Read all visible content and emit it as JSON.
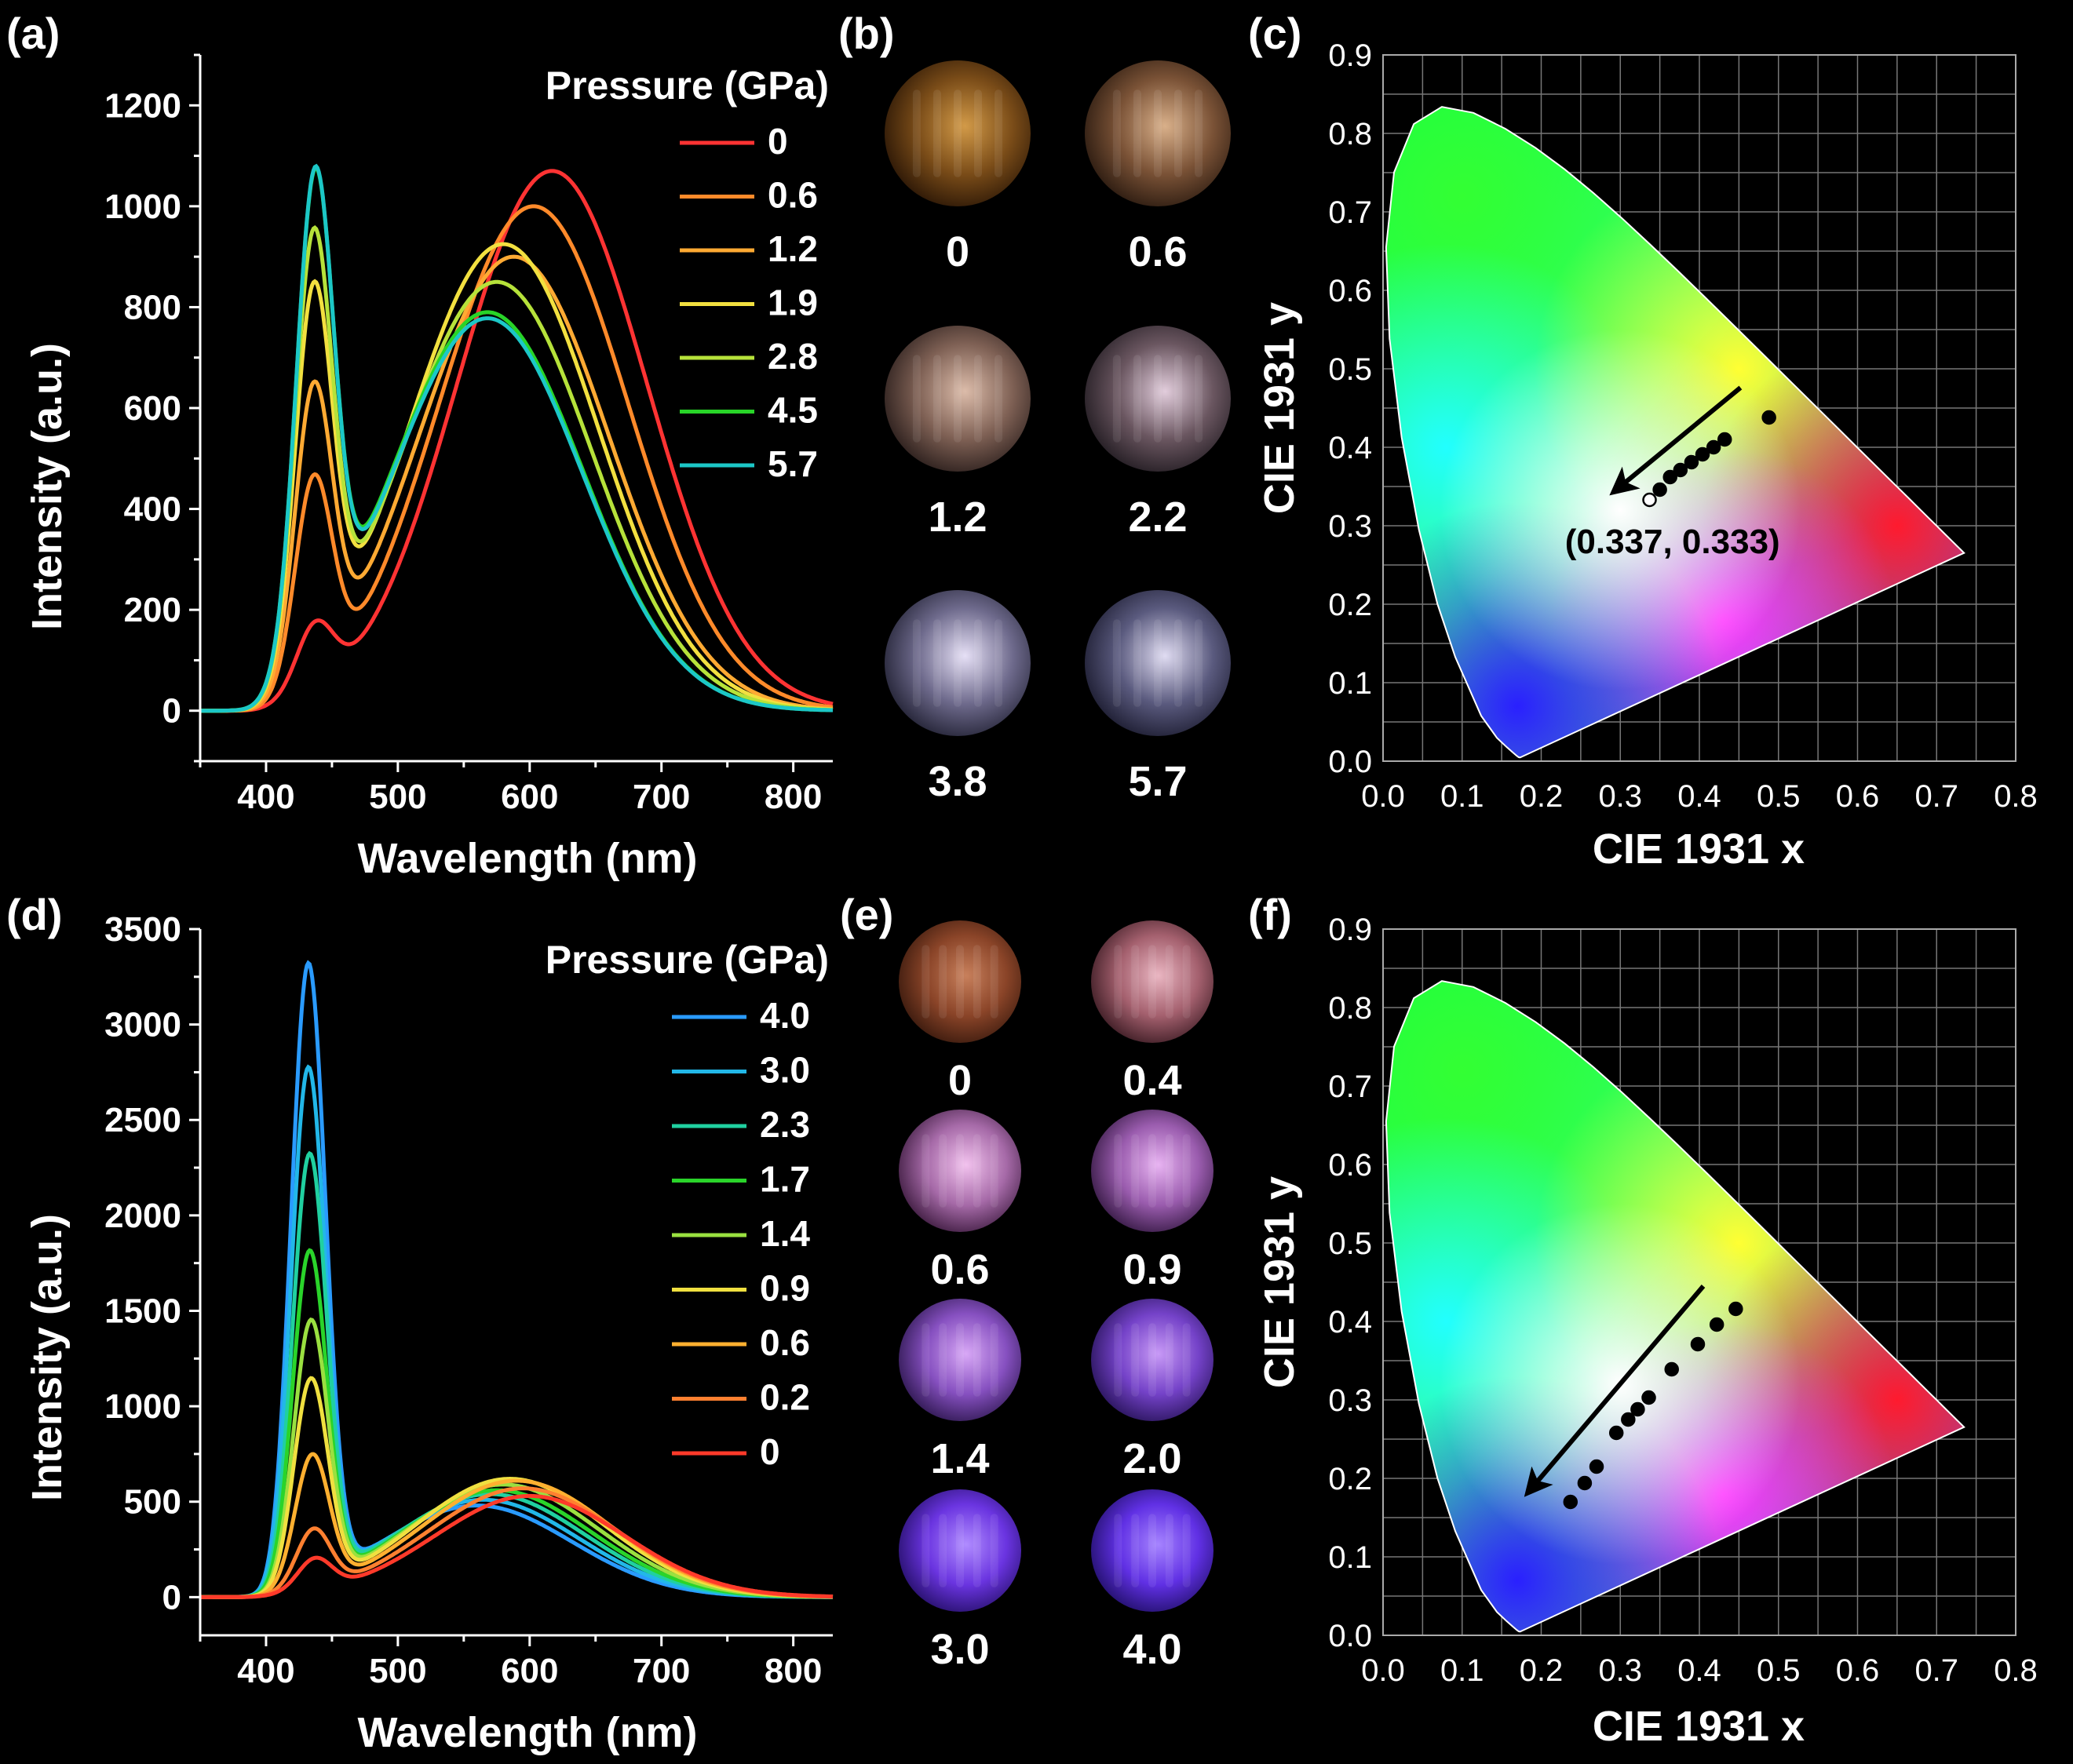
{
  "panels": {
    "a": "(a)",
    "b": "(b)",
    "c": "(c)",
    "d": "(d)",
    "e": "(e)",
    "f": "(f)"
  },
  "chart_data": [
    {
      "id": "a",
      "type": "line",
      "xlabel": "Wavelength (nm)",
      "ylabel": "Intensity (a.u.)",
      "xlim": [
        350,
        830
      ],
      "ylim": [
        -100,
        1300
      ],
      "xticks": [
        400,
        500,
        600,
        700,
        800
      ],
      "yticks": [
        0,
        200,
        400,
        600,
        800,
        1000,
        1200
      ],
      "legend_title": "Pressure (GPa)",
      "legend_position": "top-right",
      "series": [
        {
          "name": "0",
          "color": "#ff3333",
          "p1": {
            "c": 437,
            "a": 130,
            "w": 14
          },
          "p2": {
            "c": 617,
            "a": 1070,
            "w": 72
          }
        },
        {
          "name": "0.6",
          "color": "#ff8a2a",
          "p1": {
            "c": 436,
            "a": 400,
            "w": 14
          },
          "p2": {
            "c": 603,
            "a": 1000,
            "w": 72
          }
        },
        {
          "name": "1.2",
          "color": "#ffaa33",
          "p1": {
            "c": 436,
            "a": 555,
            "w": 14
          },
          "p2": {
            "c": 588,
            "a": 900,
            "w": 72
          }
        },
        {
          "name": "1.9",
          "color": "#f2e040",
          "p1": {
            "c": 436,
            "a": 725,
            "w": 14
          },
          "p2": {
            "c": 580,
            "a": 925,
            "w": 72
          }
        },
        {
          "name": "2.8",
          "color": "#b6e23a",
          "p1": {
            "c": 436,
            "a": 825,
            "w": 14
          },
          "p2": {
            "c": 575,
            "a": 850,
            "w": 72
          }
        },
        {
          "name": "4.5",
          "color": "#28d428",
          "p1": {
            "c": 437,
            "a": 925,
            "w": 14
          },
          "p2": {
            "c": 568,
            "a": 790,
            "w": 72
          }
        },
        {
          "name": "5.7",
          "color": "#1cc7c7",
          "p1": {
            "c": 437,
            "a": 930,
            "w": 14
          },
          "p2": {
            "c": 568,
            "a": 778,
            "w": 72
          }
        }
      ]
    },
    {
      "id": "d",
      "type": "line",
      "xlabel": "Wavelength (nm)",
      "ylabel": "Intensity (a.u.)",
      "xlim": [
        350,
        830
      ],
      "ylim": [
        -200,
        3500
      ],
      "xticks": [
        400,
        500,
        600,
        700,
        800
      ],
      "yticks": [
        0,
        500,
        1000,
        1500,
        2000,
        2500,
        3000,
        3500
      ],
      "legend_title": "Pressure (GPa)",
      "legend_position": "top-right",
      "series": [
        {
          "name": "4.0",
          "color": "#2a9bff",
          "p1": {
            "c": 432,
            "a": 3230,
            "w": 13
          },
          "p2": {
            "c": 560,
            "a": 480,
            "w": 72
          }
        },
        {
          "name": "3.0",
          "color": "#22b7e8",
          "p1": {
            "c": 432,
            "a": 2690,
            "w": 13
          },
          "p2": {
            "c": 565,
            "a": 510,
            "w": 72
          }
        },
        {
          "name": "2.3",
          "color": "#20d0a0",
          "p1": {
            "c": 433,
            "a": 2240,
            "w": 13
          },
          "p2": {
            "c": 570,
            "a": 540,
            "w": 72
          }
        },
        {
          "name": "1.7",
          "color": "#2ad42a",
          "p1": {
            "c": 433,
            "a": 1740,
            "w": 13
          },
          "p2": {
            "c": 575,
            "a": 560,
            "w": 72
          }
        },
        {
          "name": "1.4",
          "color": "#9ae040",
          "p1": {
            "c": 434,
            "a": 1380,
            "w": 13
          },
          "p2": {
            "c": 580,
            "a": 590,
            "w": 72
          }
        },
        {
          "name": "0.9",
          "color": "#f0e040",
          "p1": {
            "c": 434,
            "a": 1080,
            "w": 13
          },
          "p2": {
            "c": 585,
            "a": 620,
            "w": 72
          }
        },
        {
          "name": "0.6",
          "color": "#ffb030",
          "p1": {
            "c": 435,
            "a": 690,
            "w": 13
          },
          "p2": {
            "c": 590,
            "a": 610,
            "w": 72
          }
        },
        {
          "name": "0.2",
          "color": "#ff8030",
          "p1": {
            "c": 436,
            "a": 310,
            "w": 13
          },
          "p2": {
            "c": 595,
            "a": 570,
            "w": 72
          }
        },
        {
          "name": "0",
          "color": "#ff3a2a",
          "p1": {
            "c": 437,
            "a": 165,
            "w": 13
          },
          "p2": {
            "c": 600,
            "a": 530,
            "w": 72
          }
        }
      ]
    },
    {
      "id": "c",
      "type": "scatter",
      "xlabel": "CIE 1931 x",
      "ylabel": "CIE 1931 y",
      "xlim": [
        0,
        0.8
      ],
      "ylim": [
        0,
        0.9
      ],
      "xticks": [
        "0.0",
        "0.1",
        "0.2",
        "0.3",
        "0.4",
        "0.5",
        "0.6",
        "0.7",
        "0.8"
      ],
      "yticks": [
        "0.0",
        "0.1",
        "0.2",
        "0.3",
        "0.4",
        "0.5",
        "0.6",
        "0.7",
        "0.8",
        "0.9"
      ],
      "grid": true,
      "annotation": "(0.337, 0.333)",
      "annotation_pos": [
        0.23,
        0.265
      ],
      "arrow": {
        "from": [
          0.452,
          0.476
        ],
        "to": [
          0.3,
          0.35
        ]
      },
      "points": [
        {
          "x": 0.488,
          "y": 0.438
        },
        {
          "x": 0.432,
          "y": 0.41
        },
        {
          "x": 0.418,
          "y": 0.4
        },
        {
          "x": 0.404,
          "y": 0.391
        },
        {
          "x": 0.39,
          "y": 0.381
        },
        {
          "x": 0.376,
          "y": 0.371
        },
        {
          "x": 0.363,
          "y": 0.362
        },
        {
          "x": 0.35,
          "y": 0.346
        },
        {
          "x": 0.337,
          "y": 0.333,
          "open": true
        }
      ]
    },
    {
      "id": "f",
      "type": "scatter",
      "xlabel": "CIE 1931 x",
      "ylabel": "CIE 1931 y",
      "xlim": [
        0,
        0.8
      ],
      "ylim": [
        0,
        0.9
      ],
      "xticks": [
        "0.0",
        "0.1",
        "0.2",
        "0.3",
        "0.4",
        "0.5",
        "0.6",
        "0.7",
        "0.8"
      ],
      "yticks": [
        "0.0",
        "0.1",
        "0.2",
        "0.3",
        "0.4",
        "0.5",
        "0.6",
        "0.7",
        "0.8",
        "0.9"
      ],
      "grid": true,
      "arrow": {
        "from": [
          0.405,
          0.445
        ],
        "to": [
          0.19,
          0.19
        ]
      },
      "points": [
        {
          "x": 0.446,
          "y": 0.416
        },
        {
          "x": 0.422,
          "y": 0.396
        },
        {
          "x": 0.398,
          "y": 0.371
        },
        {
          "x": 0.365,
          "y": 0.339
        },
        {
          "x": 0.336,
          "y": 0.303
        },
        {
          "x": 0.322,
          "y": 0.288
        },
        {
          "x": 0.31,
          "y": 0.275
        },
        {
          "x": 0.295,
          "y": 0.258
        },
        {
          "x": 0.27,
          "y": 0.215
        },
        {
          "x": 0.255,
          "y": 0.194
        },
        {
          "x": 0.237,
          "y": 0.17
        }
      ]
    }
  ],
  "photos_b": [
    {
      "label": "0",
      "c1": "#d29a48",
      "c2": "#7a4c18",
      "c3": "#2a1606"
    },
    {
      "label": "0.6",
      "c1": "#d9b08a",
      "c2": "#7a5236",
      "c3": "#2a1a10"
    },
    {
      "label": "1.2",
      "c1": "#dcbcaa",
      "c2": "#7e6054",
      "c3": "#2a1e1c"
    },
    {
      "label": "2.2",
      "c1": "#e2cddc",
      "c2": "#6a5660",
      "c3": "#221c22"
    },
    {
      "label": "3.8",
      "c1": "#e6e0f6",
      "c2": "#6e6a8c",
      "c3": "#222234"
    },
    {
      "label": "5.7",
      "c1": "#e0dcf2",
      "c2": "#5a5a7e",
      "c3": "#1c1c30"
    }
  ],
  "photos_e": [
    {
      "label": "0",
      "c1": "#c8805c",
      "c2": "#8a4428",
      "c3": "#3a1a0e"
    },
    {
      "label": "0.4",
      "c1": "#eab6c2",
      "c2": "#a4606e",
      "c3": "#3c1c24"
    },
    {
      "label": "0.6",
      "c1": "#f2c2ee",
      "c2": "#a66aa8",
      "c3": "#3e1c40"
    },
    {
      "label": "0.9",
      "c1": "#e8b4f2",
      "c2": "#9a5cae",
      "c3": "#361a44"
    },
    {
      "label": "1.4",
      "c1": "#d8a8f6",
      "c2": "#8650c0",
      "c3": "#2e1850"
    },
    {
      "label": "2.0",
      "c1": "#c89af6",
      "c2": "#7442c8",
      "c3": "#28145a"
    },
    {
      "label": "3.0",
      "c1": "#b08cff",
      "c2": "#6a34e0",
      "c3": "#26106a"
    },
    {
      "label": "4.0",
      "c1": "#a684ff",
      "c2": "#6030e4",
      "c3": "#22106a"
    }
  ]
}
